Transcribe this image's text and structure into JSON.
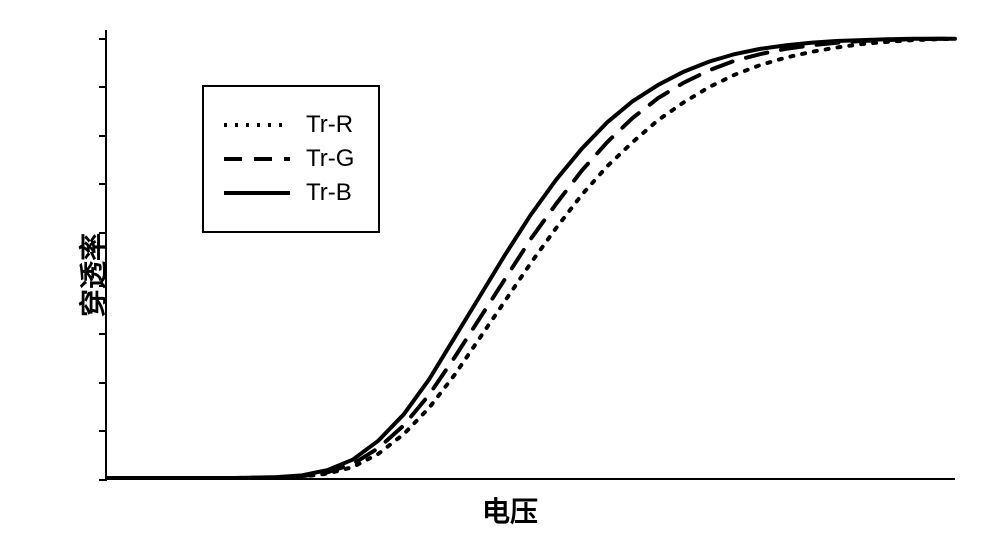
{
  "chart": {
    "type": "line",
    "background_color": "#ffffff",
    "axis_color": "#000000",
    "axis_width": 2,
    "xlabel": "电压",
    "ylabel": "穿透率",
    "label_fontsize": 28,
    "label_fontweight": "bold",
    "xlim": [
      0,
      10
    ],
    "ylim": [
      0,
      1.02
    ],
    "y_ticks": [
      0,
      0.11,
      0.22,
      0.33,
      0.44,
      0.56,
      0.67,
      0.78,
      0.89,
      1.0
    ],
    "legend": {
      "border_color": "#000000",
      "border_width": 2,
      "position": "upper-left",
      "fontsize": 24,
      "background": "#ffffff"
    },
    "series": [
      {
        "name": "Tr-R",
        "color": "#000000",
        "line_width": 4,
        "dash": "dotted",
        "dash_pattern": "3 9",
        "points": [
          [
            0.0,
            0.0
          ],
          [
            0.5,
            0.0
          ],
          [
            1.0,
            0.0
          ],
          [
            1.5,
            0.0
          ],
          [
            2.0,
            0.001
          ],
          [
            2.3,
            0.003
          ],
          [
            2.6,
            0.01
          ],
          [
            2.9,
            0.025
          ],
          [
            3.2,
            0.055
          ],
          [
            3.5,
            0.1
          ],
          [
            3.8,
            0.16
          ],
          [
            4.1,
            0.235
          ],
          [
            4.4,
            0.32
          ],
          [
            4.7,
            0.405
          ],
          [
            5.0,
            0.49
          ],
          [
            5.3,
            0.57
          ],
          [
            5.6,
            0.645
          ],
          [
            5.9,
            0.71
          ],
          [
            6.2,
            0.765
          ],
          [
            6.5,
            0.815
          ],
          [
            6.8,
            0.855
          ],
          [
            7.1,
            0.89
          ],
          [
            7.4,
            0.918
          ],
          [
            7.7,
            0.94
          ],
          [
            8.0,
            0.957
          ],
          [
            8.3,
            0.97
          ],
          [
            8.6,
            0.98
          ],
          [
            8.9,
            0.988
          ],
          [
            9.2,
            0.993
          ],
          [
            9.5,
            0.997
          ],
          [
            9.8,
            0.999
          ],
          [
            10.0,
            1.0
          ]
        ]
      },
      {
        "name": "Tr-G",
        "color": "#000000",
        "line_width": 4,
        "dash": "dashed",
        "dash_pattern": "22 14",
        "points": [
          [
            0.0,
            0.0
          ],
          [
            0.5,
            0.0
          ],
          [
            1.0,
            0.0
          ],
          [
            1.5,
            0.0
          ],
          [
            2.0,
            0.001
          ],
          [
            2.3,
            0.004
          ],
          [
            2.6,
            0.013
          ],
          [
            2.9,
            0.032
          ],
          [
            3.2,
            0.068
          ],
          [
            3.5,
            0.12
          ],
          [
            3.8,
            0.19
          ],
          [
            4.1,
            0.275
          ],
          [
            4.4,
            0.365
          ],
          [
            4.7,
            0.455
          ],
          [
            5.0,
            0.545
          ],
          [
            5.3,
            0.625
          ],
          [
            5.6,
            0.7
          ],
          [
            5.9,
            0.765
          ],
          [
            6.2,
            0.82
          ],
          [
            6.5,
            0.865
          ],
          [
            6.8,
            0.9
          ],
          [
            7.1,
            0.928
          ],
          [
            7.4,
            0.95
          ],
          [
            7.7,
            0.965
          ],
          [
            8.0,
            0.977
          ],
          [
            8.3,
            0.985
          ],
          [
            8.6,
            0.991
          ],
          [
            8.9,
            0.995
          ],
          [
            9.2,
            0.997
          ],
          [
            9.5,
            0.999
          ],
          [
            9.8,
            1.0
          ],
          [
            10.0,
            1.0
          ]
        ]
      },
      {
        "name": "Tr-B",
        "color": "#000000",
        "line_width": 4,
        "dash": "solid",
        "dash_pattern": "none",
        "points": [
          [
            0.0,
            0.0
          ],
          [
            0.5,
            0.0
          ],
          [
            1.0,
            0.0
          ],
          [
            1.5,
            0.0
          ],
          [
            2.0,
            0.002
          ],
          [
            2.3,
            0.006
          ],
          [
            2.6,
            0.018
          ],
          [
            2.9,
            0.042
          ],
          [
            3.2,
            0.085
          ],
          [
            3.5,
            0.145
          ],
          [
            3.8,
            0.225
          ],
          [
            4.1,
            0.32
          ],
          [
            4.4,
            0.415
          ],
          [
            4.7,
            0.51
          ],
          [
            5.0,
            0.6
          ],
          [
            5.3,
            0.68
          ],
          [
            5.6,
            0.75
          ],
          [
            5.9,
            0.81
          ],
          [
            6.2,
            0.858
          ],
          [
            6.5,
            0.895
          ],
          [
            6.8,
            0.925
          ],
          [
            7.1,
            0.948
          ],
          [
            7.4,
            0.965
          ],
          [
            7.7,
            0.977
          ],
          [
            8.0,
            0.985
          ],
          [
            8.3,
            0.991
          ],
          [
            8.6,
            0.995
          ],
          [
            8.9,
            0.997
          ],
          [
            9.2,
            0.999
          ],
          [
            9.5,
            1.0
          ],
          [
            9.8,
            1.0
          ],
          [
            10.0,
            1.0
          ]
        ]
      }
    ]
  }
}
